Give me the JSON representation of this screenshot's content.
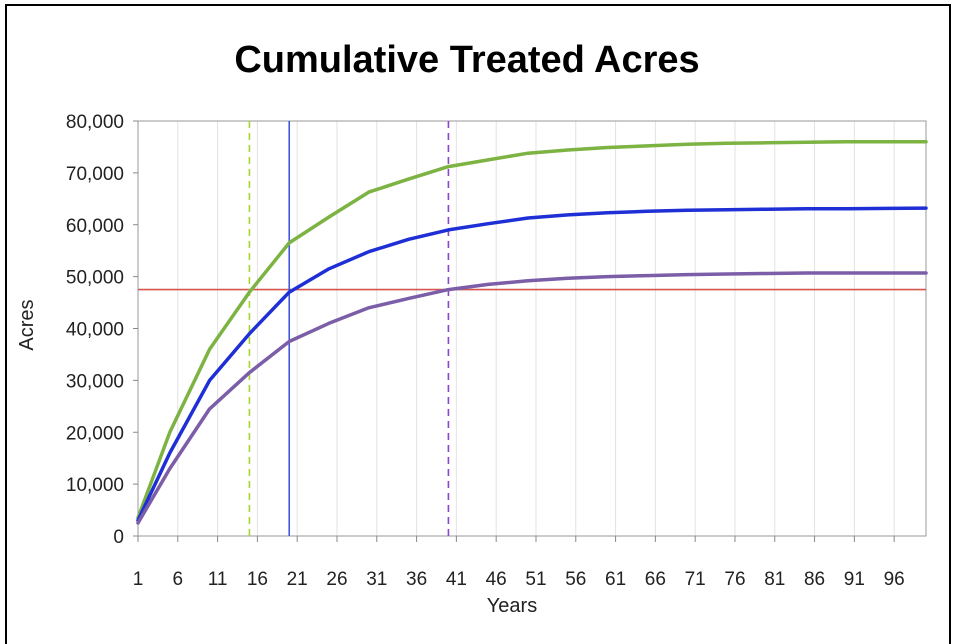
{
  "chart_data": {
    "type": "line",
    "title": "Cumulative Treated Acres",
    "xlabel": "Years",
    "ylabel": "Acres",
    "xlim": [
      1,
      100
    ],
    "ylim": [
      0,
      80000
    ],
    "xticks": [
      1,
      6,
      11,
      16,
      21,
      26,
      31,
      36,
      41,
      46,
      51,
      56,
      61,
      66,
      71,
      76,
      81,
      86,
      91,
      96
    ],
    "yticks": [
      0,
      10000,
      20000,
      30000,
      40000,
      50000,
      60000,
      70000,
      80000
    ],
    "ytick_labels": [
      "0",
      "10,000",
      "20,000",
      "30,000",
      "40,000",
      "50,000",
      "60,000",
      "70,000",
      "80,000"
    ],
    "grid": "vertical",
    "legend": "none",
    "series": [
      {
        "color": "#7cb342",
        "x": [
          1,
          5,
          10,
          15,
          20,
          25,
          30,
          35,
          40,
          45,
          50,
          55,
          60,
          65,
          70,
          75,
          80,
          85,
          90,
          100
        ],
        "values": [
          3500,
          20000,
          36000,
          47000,
          56500,
          61500,
          66300,
          68800,
          71200,
          72500,
          73800,
          74400,
          74900,
          75200,
          75500,
          75700,
          75800,
          75900,
          76000,
          76000
        ]
      },
      {
        "color": "#1f2fd6",
        "x": [
          1,
          5,
          10,
          15,
          20,
          25,
          30,
          35,
          40,
          45,
          50,
          55,
          60,
          65,
          70,
          75,
          80,
          85,
          90,
          100
        ],
        "values": [
          3000,
          16000,
          30000,
          39000,
          47000,
          51500,
          54800,
          57200,
          59000,
          60200,
          61300,
          61900,
          62300,
          62600,
          62800,
          62900,
          63000,
          63100,
          63100,
          63200
        ]
      },
      {
        "color": "#7b5ea7",
        "x": [
          1,
          5,
          10,
          15,
          20,
          25,
          30,
          35,
          40,
          45,
          50,
          55,
          60,
          65,
          70,
          75,
          80,
          85,
          90,
          100
        ],
        "values": [
          2500,
          13000,
          24500,
          31500,
          37500,
          41000,
          44000,
          45800,
          47500,
          48500,
          49200,
          49700,
          50000,
          50200,
          50400,
          50500,
          50600,
          50700,
          50700,
          50700
        ]
      }
    ],
    "reference_lines": [
      {
        "orientation": "horizontal",
        "value": 47500,
        "color": "#d4564f",
        "style": "solid"
      },
      {
        "orientation": "vertical",
        "value": 15,
        "color": "#a5d62b",
        "style": "dashed"
      },
      {
        "orientation": "vertical",
        "value": 20,
        "color": "#3f57d9",
        "style": "solid"
      },
      {
        "orientation": "vertical",
        "value": 40,
        "color": "#8a45c8",
        "style": "dashed"
      }
    ]
  }
}
